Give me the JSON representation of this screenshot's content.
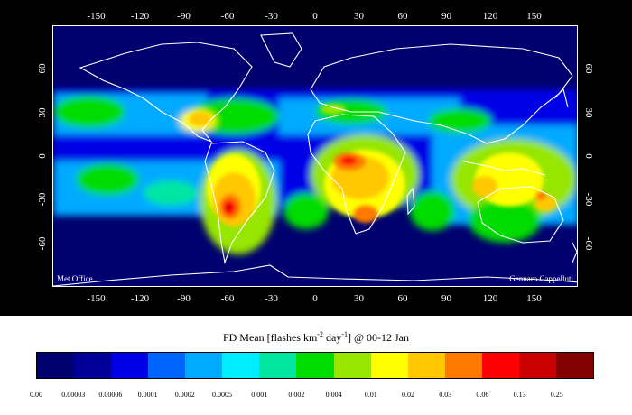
{
  "map": {
    "credit_left": "Met Office",
    "credit_right": "Gennaro Cappelluti",
    "background_color": "#00006e",
    "coastline_color": "#ffffff",
    "lon_ticks": [
      "-150",
      "-120",
      "-90",
      "-60",
      "-30",
      "0",
      "30",
      "60",
      "90",
      "120",
      "150"
    ],
    "lat_ticks": [
      "60",
      "30",
      "0",
      "-30",
      "-60"
    ],
    "lat_ticks_right": [
      "60",
      "30",
      "0",
      "-30",
      "-60"
    ]
  },
  "legend": {
    "title_main": "FD Mean [flashes km",
    "title_exp1": "-2",
    "title_mid": " day",
    "title_exp2": "-1",
    "title_end": "] @ 00-12 Jan",
    "colors": [
      "#00006e",
      "#000099",
      "#0000e6",
      "#0064ff",
      "#00aaff",
      "#00ecff",
      "#00e6a0",
      "#00dc00",
      "#96e600",
      "#ffff00",
      "#ffc800",
      "#ff7800",
      "#ff0000",
      "#c80000",
      "#820000"
    ],
    "labels": [
      "0.00",
      "0.00003",
      "0.00006",
      "0.0001",
      "0.0002",
      "0.0005",
      "0.001",
      "0.002",
      "0.004",
      "0.01",
      "0.02",
      "0.03",
      "0.06",
      "0.13",
      "0.25"
    ]
  }
}
